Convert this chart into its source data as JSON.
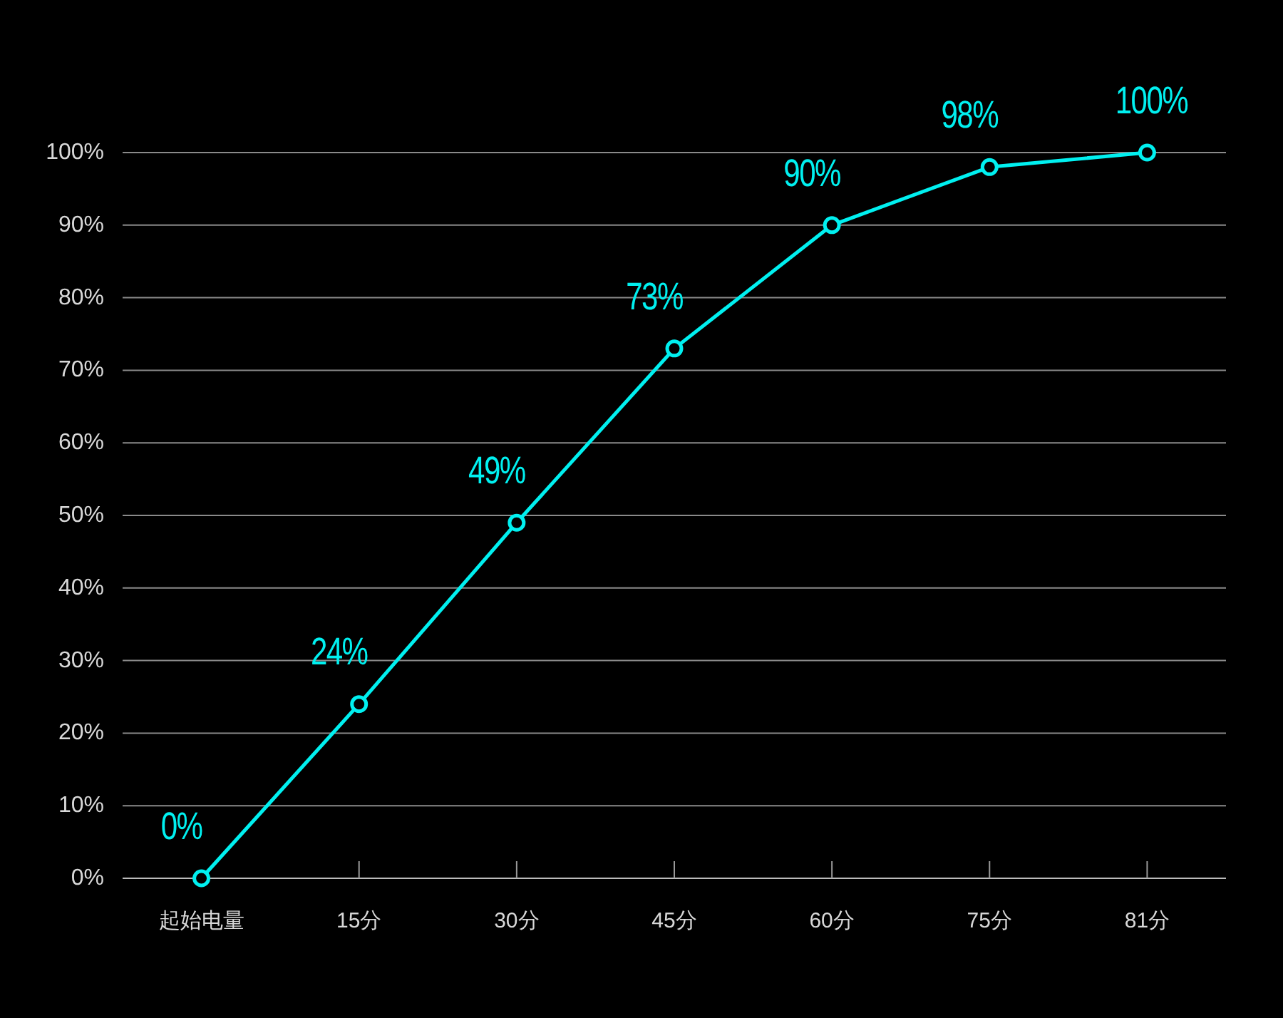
{
  "chart_data": {
    "type": "line",
    "categories": [
      "起始电量",
      "15分",
      "30分",
      "45分",
      "60分",
      "75分",
      "81分"
    ],
    "series": [
      {
        "color": "#00f0f0",
        "values": [
          0,
          24,
          49,
          73,
          90,
          98,
          100
        ],
        "value_labels": [
          "0%",
          "24%",
          "49%",
          "73%",
          "90%",
          "98%",
          "100%"
        ]
      }
    ],
    "ylim": [
      0,
      100
    ],
    "yticks": [
      {
        "value": 0,
        "label": "0%"
      },
      {
        "value": 10,
        "label": "10%"
      },
      {
        "value": 20,
        "label": "20%"
      },
      {
        "value": 30,
        "label": "30%"
      },
      {
        "value": 40,
        "label": "40%"
      },
      {
        "value": 50,
        "label": "50%"
      },
      {
        "value": 60,
        "label": "60%"
      },
      {
        "value": 70,
        "label": "70%"
      },
      {
        "value": 80,
        "label": "80%"
      },
      {
        "value": 90,
        "label": "90%"
      },
      {
        "value": 100,
        "label": "100%"
      }
    ],
    "grid": "y",
    "marker": "circle",
    "line_style": "solid"
  }
}
